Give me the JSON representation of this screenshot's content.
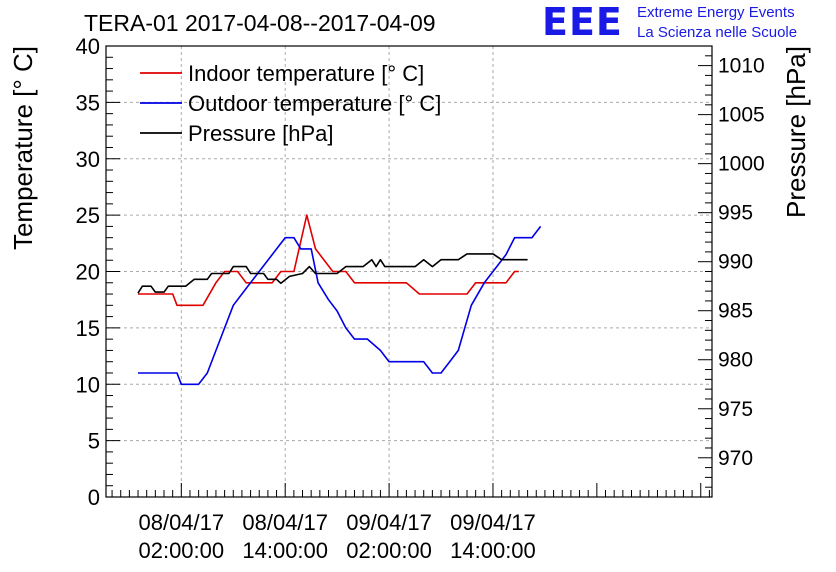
{
  "header": {
    "title": "TERA-01 2017-04-08--2017-04-09"
  },
  "logo": {
    "mark": "EEE",
    "line1": "Extreme Energy Events",
    "line2": "La Scienza nelle Scuole",
    "color": "#1a1ae6"
  },
  "chart_data": {
    "type": "line",
    "title": "TERA-01 2017-04-08--2017-04-09",
    "xlabel": "",
    "ylabel": "Temperature [° C]",
    "y2label": "Pressure [hPa]",
    "ylim": [
      0,
      40
    ],
    "y2lim": [
      966,
      1012
    ],
    "grid": true,
    "legend_position": "top-left",
    "x_unit": "hours since 08/04/17 00:00:00",
    "xlim": [
      -6.7,
      63.3
    ],
    "x_ticks": [
      {
        "x": 2,
        "line1": "08/04/17",
        "line2": "02:00:00"
      },
      {
        "x": 14,
        "line1": "08/04/17",
        "line2": "14:00:00"
      },
      {
        "x": 26,
        "line1": "09/04/17",
        "line2": "02:00:00"
      },
      {
        "x": 38,
        "line1": "09/04/17",
        "line2": "14:00:00"
      }
    ],
    "y_ticks": [
      0,
      5,
      10,
      15,
      20,
      25,
      30,
      35,
      40
    ],
    "y2_ticks": [
      970,
      975,
      980,
      985,
      990,
      995,
      1000,
      1005,
      1010
    ],
    "series": [
      {
        "name": "Indoor temperature [° C]",
        "axis": "left",
        "color": "#e00000",
        "points": [
          [
            -3,
            18
          ],
          [
            -1.5,
            18
          ],
          [
            0,
            18
          ],
          [
            1,
            18
          ],
          [
            1.5,
            17
          ],
          [
            3,
            17
          ],
          [
            4.5,
            17
          ],
          [
            6,
            19
          ],
          [
            7,
            20
          ],
          [
            8.5,
            20
          ],
          [
            9.5,
            19
          ],
          [
            11,
            19
          ],
          [
            12.5,
            19
          ],
          [
            13.5,
            20
          ],
          [
            15,
            20
          ],
          [
            16.5,
            25
          ],
          [
            17.5,
            22
          ],
          [
            18.5,
            21
          ],
          [
            19.5,
            20
          ],
          [
            21,
            20
          ],
          [
            22,
            19
          ],
          [
            24,
            19
          ],
          [
            26,
            19
          ],
          [
            28,
            19
          ],
          [
            29.5,
            18
          ],
          [
            31,
            18
          ],
          [
            33,
            18
          ],
          [
            35,
            18
          ],
          [
            36,
            19
          ],
          [
            38,
            19
          ],
          [
            39.5,
            19
          ],
          [
            40.5,
            20
          ],
          [
            41,
            20
          ]
        ]
      },
      {
        "name": "Outdoor temperature [° C]",
        "axis": "left",
        "color": "#0000e6",
        "points": [
          [
            -3,
            11
          ],
          [
            -1,
            11
          ],
          [
            0,
            11
          ],
          [
            1.5,
            11
          ],
          [
            2,
            10
          ],
          [
            4,
            10
          ],
          [
            5,
            11
          ],
          [
            6.5,
            14
          ],
          [
            8,
            17
          ],
          [
            9.5,
            18.5
          ],
          [
            11,
            20
          ],
          [
            12.5,
            21.5
          ],
          [
            14,
            23
          ],
          [
            15,
            23
          ],
          [
            15.8,
            22
          ],
          [
            17,
            22
          ],
          [
            17.8,
            19
          ],
          [
            19,
            17.5
          ],
          [
            20,
            16.5
          ],
          [
            21,
            15
          ],
          [
            22,
            14
          ],
          [
            23.5,
            14
          ],
          [
            25,
            13
          ],
          [
            26,
            12
          ],
          [
            27.5,
            12
          ],
          [
            28.5,
            12
          ],
          [
            30,
            12
          ],
          [
            31,
            11
          ],
          [
            32,
            11
          ],
          [
            33,
            12
          ],
          [
            34,
            13
          ],
          [
            35.5,
            17
          ],
          [
            37,
            19
          ],
          [
            38,
            20
          ],
          [
            39.5,
            21.5
          ],
          [
            40.5,
            23
          ],
          [
            41.5,
            23
          ],
          [
            42.5,
            23
          ],
          [
            43,
            23.5
          ],
          [
            43.5,
            24
          ]
        ]
      },
      {
        "name": "Pressure [hPa]",
        "axis": "right",
        "color": "#000000",
        "points": [
          [
            -3,
            986.8
          ],
          [
            -2.5,
            987.5
          ],
          [
            -1.5,
            987.5
          ],
          [
            -1,
            986.9
          ],
          [
            0,
            986.9
          ],
          [
            0.5,
            987.5
          ],
          [
            2.5,
            987.5
          ],
          [
            3.5,
            988.2
          ],
          [
            5,
            988.2
          ],
          [
            5.5,
            988.8
          ],
          [
            7.5,
            988.8
          ],
          [
            8,
            989.5
          ],
          [
            9.5,
            989.5
          ],
          [
            10,
            988.8
          ],
          [
            11.5,
            988.8
          ],
          [
            12,
            988.2
          ],
          [
            13,
            988.2
          ],
          [
            13.5,
            987.8
          ],
          [
            14.5,
            988.5
          ],
          [
            16,
            988.8
          ],
          [
            16.8,
            989.5
          ],
          [
            17.5,
            988.8
          ],
          [
            18,
            988.8
          ],
          [
            20,
            988.8
          ],
          [
            21,
            989.5
          ],
          [
            23,
            989.5
          ],
          [
            24,
            990.2
          ],
          [
            24.5,
            989.5
          ],
          [
            25,
            990.2
          ],
          [
            25.5,
            989.5
          ],
          [
            27,
            989.5
          ],
          [
            29,
            989.5
          ],
          [
            30,
            990.2
          ],
          [
            31,
            989.5
          ],
          [
            32,
            990.2
          ],
          [
            34,
            990.2
          ],
          [
            35,
            990.8
          ],
          [
            37,
            990.8
          ],
          [
            38,
            990.8
          ],
          [
            39,
            990.2
          ],
          [
            40,
            990.2
          ],
          [
            41,
            990.2
          ],
          [
            42,
            990.2
          ]
        ]
      }
    ]
  }
}
